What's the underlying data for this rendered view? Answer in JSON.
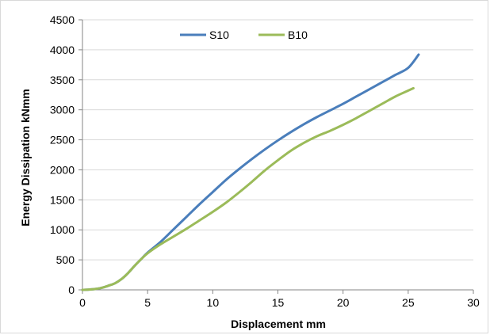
{
  "chart_data": {
    "type": "line",
    "title": "",
    "xlabel": "Displacement mm",
    "ylabel": "Energy Dissipation kNmm",
    "xlim": [
      0,
      30
    ],
    "ylim": [
      0,
      4500
    ],
    "xticks": [
      0,
      5,
      10,
      15,
      20,
      25,
      30
    ],
    "yticks": [
      0,
      500,
      1000,
      1500,
      2000,
      2500,
      3000,
      3500,
      4000,
      4500
    ],
    "grid": "horizontal",
    "legend_position": "top",
    "series": [
      {
        "name": "S10",
        "color": "#4a7ebb",
        "x": [
          0,
          0.5,
          1,
          1.5,
          2,
          2.5,
          3,
          3.5,
          4,
          4.5,
          5,
          6,
          7,
          8,
          9,
          10,
          11,
          12,
          13,
          14,
          15,
          16,
          17,
          18,
          19,
          20,
          21,
          22,
          23,
          24,
          25,
          25.8
        ],
        "y": [
          0,
          5,
          15,
          35,
          70,
          110,
          180,
          280,
          400,
          510,
          620,
          800,
          1010,
          1220,
          1430,
          1630,
          1830,
          2010,
          2180,
          2340,
          2490,
          2630,
          2760,
          2880,
          2990,
          3100,
          3220,
          3340,
          3460,
          3580,
          3700,
          3920
        ]
      },
      {
        "name": "B10",
        "color": "#9bbb59",
        "x": [
          0,
          0.5,
          1,
          1.5,
          2,
          2.5,
          3,
          3.5,
          4,
          4.5,
          5,
          6,
          7,
          8,
          9,
          10,
          11,
          12,
          13,
          14,
          15,
          16,
          17,
          18,
          19,
          20,
          21,
          22,
          23,
          24,
          25,
          25.4
        ],
        "y": [
          0,
          5,
          15,
          35,
          70,
          110,
          180,
          280,
          400,
          510,
          610,
          760,
          890,
          1020,
          1160,
          1300,
          1450,
          1620,
          1800,
          1990,
          2160,
          2320,
          2450,
          2560,
          2650,
          2750,
          2860,
          2980,
          3100,
          3220,
          3320,
          3360
        ]
      }
    ]
  }
}
